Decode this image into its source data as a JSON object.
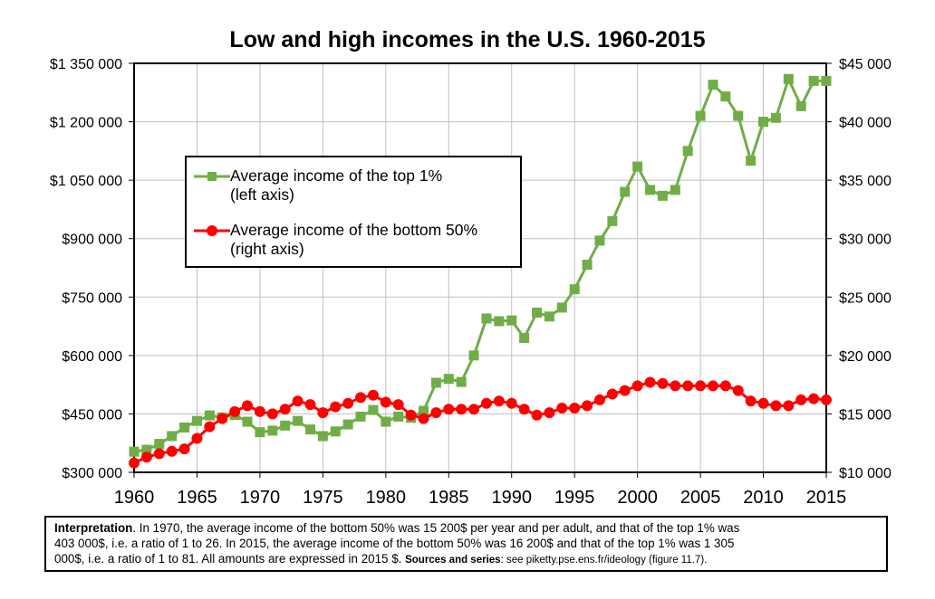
{
  "chart_data": {
    "type": "line",
    "title": "Low and high incomes in the U.S. 1960-2015",
    "x": [
      1960,
      1961,
      1962,
      1963,
      1964,
      1965,
      1966,
      1967,
      1968,
      1969,
      1970,
      1971,
      1972,
      1973,
      1974,
      1975,
      1976,
      1977,
      1978,
      1979,
      1980,
      1981,
      1982,
      1983,
      1984,
      1985,
      1986,
      1987,
      1988,
      1989,
      1990,
      1991,
      1992,
      1993,
      1994,
      1995,
      1996,
      1997,
      1998,
      1999,
      2000,
      2001,
      2002,
      2003,
      2004,
      2005,
      2006,
      2007,
      2008,
      2009,
      2010,
      2011,
      2012,
      2013,
      2014,
      2015
    ],
    "x_ticks": [
      "1960",
      "1965",
      "1970",
      "1975",
      "1980",
      "1985",
      "1990",
      "1995",
      "2000",
      "2005",
      "2010",
      "2015"
    ],
    "xlim": [
      1960,
      2015
    ],
    "y_left": {
      "ylim": [
        300000,
        1350000
      ],
      "ticks": [
        "$300 000",
        "$450 000",
        "$600 000",
        "$750 000",
        "$900 000",
        "$1 050 000",
        "$1 200 000",
        "$1 350 000"
      ]
    },
    "y_right": {
      "ylim": [
        10000,
        45000
      ],
      "ticks": [
        "$10 000",
        "$15 000",
        "$20 000",
        "$25 000",
        "$30 000",
        "$35 000",
        "$40 000",
        "$45 000"
      ]
    },
    "grid": true,
    "series": [
      {
        "name": "Average income of the top 1%",
        "sub": "(left axis)",
        "axis": "left",
        "color": "#70AD47",
        "marker": "square",
        "values": [
          353000,
          358000,
          373000,
          393000,
          415000,
          432000,
          446000,
          441000,
          447000,
          430000,
          403000,
          407000,
          420000,
          432000,
          410000,
          393000,
          405000,
          423000,
          443000,
          460000,
          430000,
          443000,
          440000,
          458000,
          530000,
          540000,
          532000,
          600000,
          695000,
          688000,
          690000,
          645000,
          710000,
          700000,
          723000,
          770000,
          833000,
          895000,
          945000,
          1020000,
          1085000,
          1025000,
          1010000,
          1025000,
          1125000,
          1215000,
          1295000,
          1265000,
          1215000,
          1100000,
          1200000,
          1210000,
          1310000,
          1240000,
          1305000,
          1305000
        ]
      },
      {
        "name": "Average income of the bottom 50%",
        "sub": "(right axis)",
        "axis": "right",
        "color": "#FF0000",
        "marker": "circle",
        "values": [
          10800,
          11300,
          11600,
          11800,
          12000,
          12900,
          13900,
          14600,
          15200,
          15700,
          15200,
          15000,
          15400,
          16100,
          15800,
          15100,
          15600,
          15900,
          16400,
          16600,
          16000,
          15800,
          14900,
          14600,
          15100,
          15400,
          15400,
          15400,
          15900,
          16100,
          15900,
          15400,
          14900,
          15100,
          15500,
          15500,
          15700,
          16200,
          16700,
          17000,
          17400,
          17700,
          17600,
          17400,
          17400,
          17400,
          17400,
          17400,
          17000,
          16100,
          15900,
          15700,
          15700,
          16200,
          16300,
          16200
        ]
      }
    ]
  },
  "note": {
    "line1_bold": "Interpretation",
    "line1": ". In 1970, the average income of the bottom 50% was 15 200$ per year and per adult, and that of the top 1% was",
    "line2": "403 000$, i.e. a ratio of 1 to 26. In 2015, the average income of the bottom 50% was 16 200$ and that of the top 1% was 1 305",
    "line3": "000$, i.e. a ratio of 1 to 81. All amounts are expressed in 2015 $. ",
    "sources_bold": "Sources and series",
    "sources": ": see piketty.pse.ens.fr/ideology (figure 11.7)."
  }
}
